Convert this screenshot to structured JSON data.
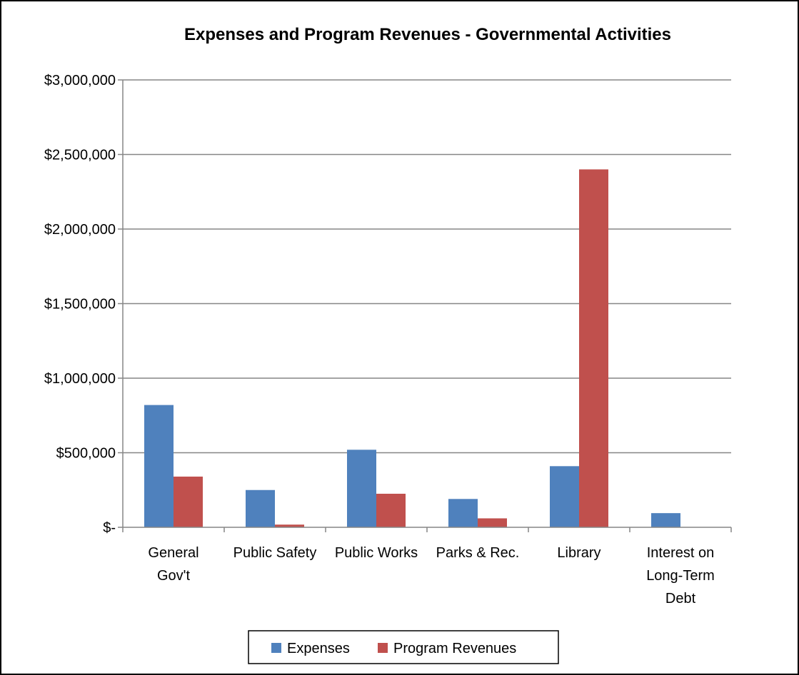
{
  "chart_data": {
    "type": "bar",
    "title": "Expenses and Program Revenues - Governmental Activities",
    "xlabel": "",
    "ylabel": "",
    "categories": [
      [
        "General",
        "Gov't"
      ],
      [
        "Public Safety"
      ],
      [
        "Public Works"
      ],
      [
        "Parks & Rec."
      ],
      [
        "Library"
      ],
      [
        "Interest on",
        "Long-Term",
        "Debt"
      ]
    ],
    "series": [
      {
        "name": "Expenses",
        "color": "#4F81BD",
        "values": [
          820000,
          250000,
          520000,
          190000,
          410000,
          95000
        ]
      },
      {
        "name": "Program Revenues",
        "color": "#C0504D",
        "values": [
          340000,
          18000,
          225000,
          60000,
          2400000,
          0
        ]
      }
    ],
    "ylim": [
      0,
      3000000
    ],
    "yticks": [
      0,
      500000,
      1000000,
      1500000,
      2000000,
      2500000,
      3000000
    ],
    "ytick_labels": [
      "$-",
      "$500,000",
      "$1,000,000",
      "$1,500,000",
      "$2,000,000",
      "$2,500,000",
      "$3,000,000"
    ],
    "grid": true,
    "legend_position": "bottom"
  }
}
